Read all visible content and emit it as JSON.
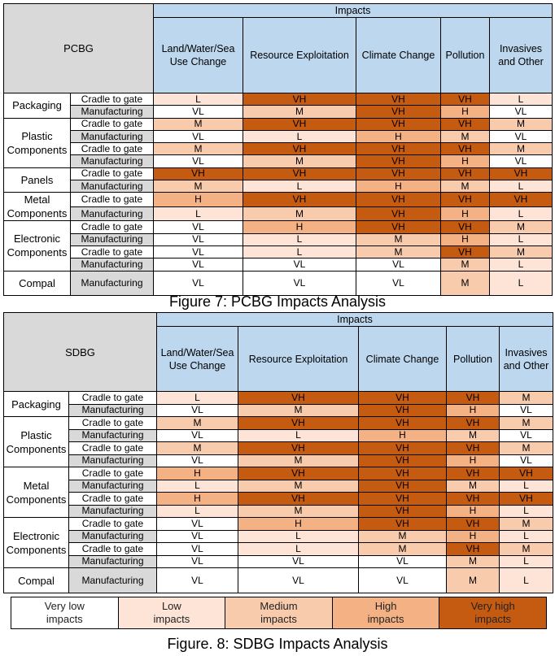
{
  "levels": {
    "VL": "#ffffff",
    "L": "#fde4d6",
    "M": "#f8cbad",
    "H": "#f4b183",
    "VH": "#c55a11"
  },
  "header_color": "#bdd7ee",
  "stage_grey": "#d9d9d9",
  "tables": [
    {
      "corner": "PCBG",
      "impacts_label": "Impacts",
      "columns": [
        "Land/Water/Sea Use Change",
        "Resource Exploitation",
        "Climate Change",
        "Pollution",
        "Invasives and Other"
      ],
      "groups": [
        {
          "name": "Packaging",
          "rows": [
            [
              "Cradle to gate",
              "L",
              "VH",
              "VH",
              "VH",
              "L"
            ],
            [
              "Manufacturing",
              "VL",
              "M",
              "VH",
              "H",
              "VL"
            ]
          ]
        },
        {
          "name": "Plastic Components",
          "rows": [
            [
              "Cradle to gate",
              "M",
              "VH",
              "VH",
              "VH",
              "M"
            ],
            [
              "Manufacturing",
              "VL",
              "L",
              "H",
              "M",
              "VL"
            ],
            [
              "Cradle to gate",
              "M",
              "VH",
              "VH",
              "VH",
              "M"
            ],
            [
              "Manufacturing",
              "VL",
              "M",
              "VH",
              "H",
              "VL"
            ]
          ]
        },
        {
          "name": "Panels",
          "rows": [
            [
              "Cradle to gate",
              "VH",
              "VH",
              "VH",
              "VH",
              "VH"
            ],
            [
              "Manufacturing",
              "M",
              "L",
              "H",
              "M",
              "L"
            ]
          ]
        },
        {
          "name": "Metal Components",
          "rows": [
            [
              "Cradle to gate",
              "H",
              "VH",
              "VH",
              "VH",
              "VH"
            ],
            [
              "Manufacturing",
              "L",
              "M",
              "VH",
              "H",
              "L"
            ]
          ]
        },
        {
          "name": "Electronic Components",
          "rows": [
            [
              "Cradle to gate",
              "VL",
              "H",
              "VH",
              "VH",
              "M"
            ],
            [
              "Manufacturing",
              "VL",
              "L",
              "M",
              "H",
              "L"
            ],
            [
              "Cradle to gate",
              "VL",
              "L",
              "M",
              "VH",
              "M"
            ],
            [
              "Manufacturing",
              "VL",
              "VL",
              "VL",
              "M",
              "L"
            ]
          ]
        },
        {
          "name": "Compal",
          "rows": [
            [
              "Manufacturing",
              "VL",
              "VL",
              "VL",
              "M",
              "L"
            ]
          ]
        }
      ],
      "caption": "Figure 7: PCBG Impacts Analysis"
    },
    {
      "corner": "SDBG",
      "impacts_label": "Impacts",
      "columns": [
        "Land/Water/Sea Use Change",
        "Resource Exploitation",
        "Climate Change",
        "Pollution",
        "Invasives and Other"
      ],
      "groups": [
        {
          "name": "Packaging",
          "rows": [
            [
              "Cradle to gate",
              "L",
              "VH",
              "VH",
              "VH",
              "M"
            ],
            [
              "Manufacturing",
              "VL",
              "M",
              "VH",
              "H",
              "VL"
            ]
          ]
        },
        {
          "name": "Plastic Components",
          "rows": [
            [
              "Cradle to gate",
              "M",
              "VH",
              "VH",
              "VH",
              "M"
            ],
            [
              "Manufacturing",
              "VL",
              "L",
              "H",
              "M",
              "VL"
            ],
            [
              "Cradle to gate",
              "M",
              "VH",
              "VH",
              "VH",
              "M"
            ],
            [
              "Manufacturing",
              "VL",
              "M",
              "VH",
              "H",
              "VL"
            ]
          ]
        },
        {
          "name": "Metal Components",
          "rows": [
            [
              "Cradle to gate",
              "H",
              "VH",
              "VH",
              "VH",
              "VH"
            ],
            [
              "Manufacturing",
              "L",
              "M",
              "VH",
              "M",
              "L"
            ],
            [
              "Cradle to gate",
              "H",
              "VH",
              "VH",
              "VH",
              "VH"
            ],
            [
              "Manufacturing",
              "L",
              "M",
              "VH",
              "H",
              "L"
            ]
          ]
        },
        {
          "name": "Electronic Components",
          "rows": [
            [
              "Cradle to gate",
              "VL",
              "H",
              "VH",
              "VH",
              "M"
            ],
            [
              "Manufacturing",
              "VL",
              "L",
              "M",
              "H",
              "L"
            ],
            [
              "Cradle to gate",
              "VL",
              "L",
              "M",
              "VH",
              "M"
            ],
            [
              "Manufacturing",
              "VL",
              "VL",
              "VL",
              "M",
              "L"
            ]
          ]
        },
        {
          "name": "Compal",
          "rows": [
            [
              "Manufacturing",
              "VL",
              "VL",
              "VL",
              "M",
              "L"
            ]
          ]
        }
      ],
      "caption": "Figure. 8: SDBG Impacts Analysis"
    }
  ],
  "legend": [
    {
      "label": "Very low impacts",
      "level": "VL"
    },
    {
      "label": "Low impacts",
      "level": "L"
    },
    {
      "label": "Medium impacts",
      "level": "M"
    },
    {
      "label": "High impacts",
      "level": "H"
    },
    {
      "label": "Very high impacts",
      "level": "VH"
    }
  ]
}
